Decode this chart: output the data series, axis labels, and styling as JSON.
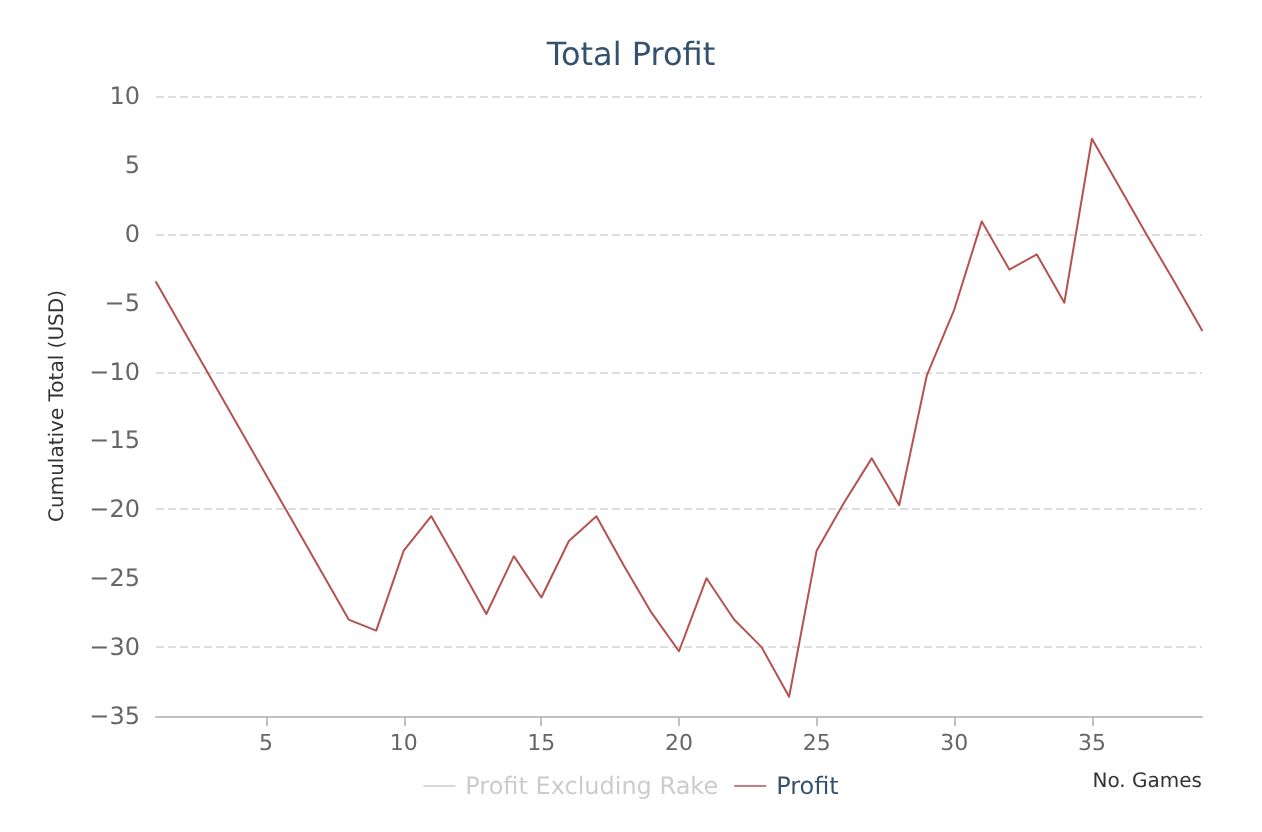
{
  "chart_data": {
    "type": "line",
    "title": "Total Profit",
    "xlabel": "No. Games",
    "ylabel": "Cumulative Total (USD)",
    "x": [
      1,
      2,
      3,
      4,
      5,
      6,
      7,
      8,
      9,
      10,
      11,
      12,
      13,
      14,
      15,
      16,
      17,
      18,
      19,
      20,
      21,
      22,
      23,
      24,
      25,
      26,
      27,
      28,
      29,
      30,
      31,
      32,
      33,
      34,
      35,
      36,
      37,
      38,
      39
    ],
    "series": [
      {
        "name": "Profit Excluding Rake",
        "color": "#cccccc",
        "values": [
          null,
          null,
          null,
          null,
          null,
          null,
          null,
          null,
          null,
          null,
          null,
          null,
          null,
          null,
          null,
          null,
          null,
          null,
          null,
          null,
          null,
          null,
          null,
          null,
          null,
          null,
          null,
          null,
          null,
          null,
          null,
          null,
          null,
          null,
          null,
          null,
          null,
          null,
          null
        ]
      },
      {
        "name": "Profit",
        "color": "#b5524f",
        "values": [
          -3.5,
          -7,
          -10.5,
          -14,
          -17.5,
          -21,
          -24.5,
          -28,
          -28.8,
          -23,
          -20.5,
          -24,
          -27.6,
          -23.4,
          -26.4,
          -22.3,
          -20.5,
          -24.1,
          -27.5,
          -30.3,
          -25,
          -28,
          -30,
          -33.6,
          -23,
          -19.5,
          -16.3,
          -19.7,
          -10.3,
          -5.5,
          0.9,
          -2.6,
          -1.5,
          -5,
          6.9,
          3.4,
          -0.1,
          -3.5,
          -7
        ]
      }
    ],
    "xlim": [
      1,
      39
    ],
    "xticks": [
      5,
      10,
      15,
      20,
      25,
      30,
      35
    ],
    "ylim": [
      -35,
      10
    ],
    "yticks": [
      -35,
      -30,
      -25,
      -20,
      -15,
      -10,
      -5,
      0,
      5,
      10
    ],
    "grid": "y",
    "legend": "bottom",
    "marker": "none",
    "line_style": "solid"
  }
}
